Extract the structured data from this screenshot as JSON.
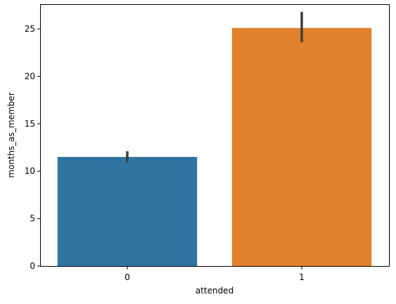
{
  "chart_data": {
    "type": "bar",
    "xlabel": "attended",
    "ylabel": "months_as_member",
    "categories": [
      "0",
      "1"
    ],
    "values": [
      11.5,
      25.1
    ],
    "error_bars": [
      [
        10.95,
        12.1
      ],
      [
        23.6,
        26.8
      ]
    ],
    "bar_colors": [
      "#3274a1",
      "#e1812c"
    ],
    "error_bar_color": "#3f3f3f",
    "ylim": [
      0,
      27.6
    ],
    "yticks": [
      0,
      5,
      10,
      15,
      20,
      25
    ],
    "grid": false
  }
}
